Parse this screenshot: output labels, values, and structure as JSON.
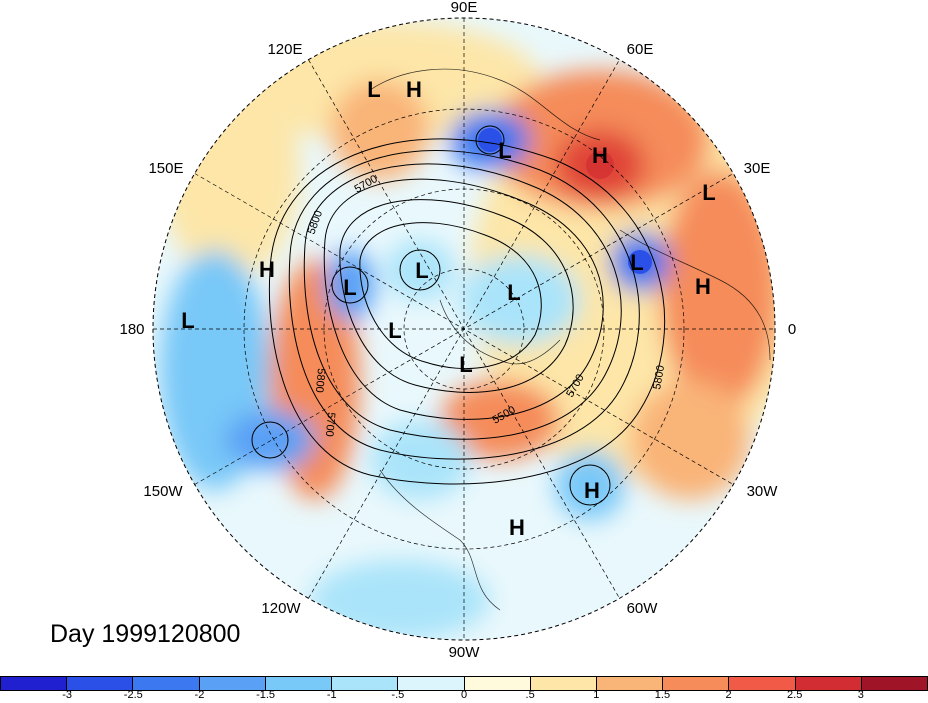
{
  "map": {
    "title": "Day 1999120800",
    "longitude_labels": [
      "90E",
      "60E",
      "30E",
      "0",
      "30W",
      "60W",
      "90W",
      "120W",
      "150W",
      "180",
      "150E",
      "120E"
    ],
    "contour_labels": [
      "5700",
      "5800",
      "5800",
      "5700",
      "5500",
      "5700",
      "5800"
    ],
    "centers": [
      {
        "type": "L",
        "label": "L"
      },
      {
        "type": "H",
        "label": "H"
      },
      {
        "type": "L",
        "label": "L"
      },
      {
        "type": "H",
        "label": "H"
      },
      {
        "type": "L",
        "label": "L"
      },
      {
        "type": "L",
        "label": "L"
      },
      {
        "type": "H",
        "label": "H"
      },
      {
        "type": "H",
        "label": "H"
      },
      {
        "type": "L",
        "label": "L"
      },
      {
        "type": "L",
        "label": "L"
      },
      {
        "type": "L",
        "label": "L"
      },
      {
        "type": "L",
        "label": "L"
      },
      {
        "type": "L",
        "label": "L"
      },
      {
        "type": "L",
        "label": "L"
      },
      {
        "type": "H",
        "label": "H"
      }
    ]
  },
  "colorbar": {
    "colors": [
      "#2020d0",
      "#2a50e8",
      "#3c78f0",
      "#5aa0f5",
      "#78c8f8",
      "#aae4fa",
      "#dcf5fc",
      "#fffadc",
      "#fde6a8",
      "#f9b478",
      "#f58c5a",
      "#f05a46",
      "#d22d32",
      "#a01428"
    ],
    "tick_labels": [
      "-3",
      "-2.5",
      "-2",
      "-1.5",
      "-1",
      "-.5",
      "0",
      ".5",
      "1",
      "1.5",
      "2",
      "2.5",
      "3"
    ]
  }
}
